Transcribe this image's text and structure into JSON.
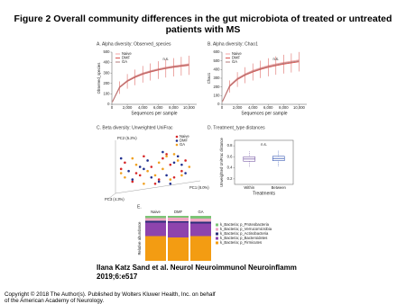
{
  "title": "Figure 2 Overall community differences in the gut microbiota of treated or untreated patients with MS",
  "chart_data": [
    {
      "type": "line",
      "title": "A. Alpha diversity: Observed_species",
      "x_label": "Sequences per sample",
      "y_label": "Observed_species",
      "annotation": "n.s.",
      "x": [
        100,
        1000,
        2000,
        3000,
        4000,
        5000,
        6000,
        7000,
        8000,
        9000,
        10000
      ],
      "xlim": [
        0,
        11000
      ],
      "xticks": [
        0,
        {
          "value": 2000,
          "label": "2,000"
        },
        {
          "value": 4000,
          "label": "4,000"
        },
        {
          "value": 6000,
          "label": "6,000"
        },
        {
          "value": 8000,
          "label": "8,000"
        },
        {
          "value": 10000,
          "label": "10,000"
        }
      ],
      "ylim": [
        0,
        500
      ],
      "yticks": [
        0,
        100,
        200,
        300,
        400,
        500
      ],
      "series": [
        {
          "name": "Naive",
          "color": "#f4a6a6",
          "values": [
            30,
            170,
            230,
            270,
            300,
            322,
            340,
            356,
            368,
            378,
            388
          ]
        },
        {
          "name": "DMF",
          "color": "#d9534f",
          "values": [
            28,
            160,
            220,
            258,
            288,
            310,
            328,
            343,
            355,
            365,
            374
          ],
          "errors": [
            10,
            60,
            70,
            75,
            80,
            82,
            85,
            86,
            88,
            90,
            92
          ]
        },
        {
          "name": "GA",
          "color": "#b07878",
          "values": [
            29,
            165,
            225,
            264,
            294,
            316,
            334,
            349,
            361,
            371,
            381
          ]
        }
      ]
    },
    {
      "type": "line",
      "title": "B. Alpha diversity: Chao1",
      "x_label": "Sequences per sample",
      "y_label": "Chao1",
      "annotation": "n.s.",
      "x": [
        100,
        1000,
        2000,
        3000,
        4000,
        5000,
        6000,
        7000,
        8000,
        9000,
        10000
      ],
      "xlim": [
        0,
        11000
      ],
      "xticks": [
        0,
        {
          "value": 2000,
          "label": "2,000"
        },
        {
          "value": 4000,
          "label": "4,000"
        },
        {
          "value": 6000,
          "label": "6,000"
        },
        {
          "value": 8000,
          "label": "8,000"
        },
        {
          "value": 10000,
          "label": "10,000"
        }
      ],
      "ylim": [
        0,
        600
      ],
      "yticks": [
        0,
        100,
        200,
        300,
        400,
        500,
        600
      ],
      "series": [
        {
          "name": "Naive",
          "color": "#f4a6a6",
          "values": [
            40,
            220,
            300,
            350,
            390,
            420,
            445,
            465,
            482,
            496,
            510
          ]
        },
        {
          "name": "DMF",
          "color": "#d9534f",
          "values": [
            38,
            205,
            285,
            335,
            372,
            402,
            426,
            446,
            462,
            476,
            490
          ],
          "errors": [
            12,
            70,
            85,
            92,
            98,
            100,
            104,
            106,
            108,
            110,
            112
          ]
        },
        {
          "name": "GA",
          "color": "#b07878",
          "values": [
            39,
            212,
            292,
            342,
            380,
            410,
            435,
            455,
            472,
            486,
            500
          ]
        }
      ]
    },
    {
      "type": "scatter",
      "title": "C. Beta diversity: Unweighted UniFrac",
      "x_label": "PC1 (8.0%)",
      "y_label": "PC2 (5.2%)",
      "z_label": "PC3 (4.3%)",
      "xlim": [
        -1,
        1
      ],
      "ylim": [
        -1,
        1
      ],
      "series": [
        {
          "name": "Naive",
          "color": "#d62728",
          "x": [
            -0.8,
            -0.5,
            -0.3,
            0.1,
            0.4,
            0.7,
            -0.6,
            0.2,
            0.5,
            -0.1,
            0.8,
            -0.9,
            0.0,
            0.3,
            -0.4
          ],
          "values": [
            0.2,
            -0.3,
            0.5,
            -0.6,
            0.1,
            -0.2,
            -0.7,
            0.4,
            -0.5,
            0.0,
            0.3,
            -0.1,
            -0.8,
            0.6,
            -0.4
          ]
        },
        {
          "name": "DMF",
          "color": "#1f2f8f",
          "x": [
            -0.7,
            -0.2,
            0.3,
            0.6,
            -0.4,
            0.1,
            0.8,
            -0.9,
            0.5,
            -0.1,
            0.2,
            -0.6,
            0.7,
            -0.3,
            0.4
          ],
          "values": [
            -0.2,
            0.3,
            -0.4,
            0.5,
            0.0,
            -0.7,
            -0.3,
            0.4,
            0.2,
            -0.5,
            0.7,
            -0.6,
            0.1,
            -0.1,
            -0.8
          ]
        },
        {
          "name": "GA",
          "color": "#f0a020",
          "x": [
            -0.5,
            0.0,
            0.6,
            -0.8,
            0.3,
            -0.2,
            0.9,
            0.4,
            -0.6,
            0.1,
            -0.3,
            0.7,
            -0.9,
            0.2,
            0.5
          ],
          "values": [
            0.1,
            -0.4,
            0.3,
            -0.5,
            0.5,
            -0.2,
            0.0,
            -0.6,
            0.4,
            0.2,
            -0.8,
            -0.4,
            -0.3,
            -0.1,
            0.6
          ]
        }
      ]
    },
    {
      "type": "box",
      "title": "D. Treatment_type distances",
      "x_label": "Treatments",
      "y_label": "Unweighted UniFrac distance",
      "annotation": "n.s.",
      "categories": [
        "Within",
        "Between"
      ],
      "colors": [
        "#7b5ea7",
        "#3b5bb5"
      ],
      "min": [
        0.42,
        0.43
      ],
      "q1": [
        0.52,
        0.53
      ],
      "median": [
        0.56,
        0.57
      ],
      "q3": [
        0.6,
        0.61
      ],
      "max": [
        0.7,
        0.71
      ],
      "ylim": [
        0.1,
        0.9
      ],
      "yticks": [
        0.2,
        0.4,
        0.6,
        0.8
      ]
    },
    {
      "type": "stacked_bar",
      "title": "E.",
      "y_label": "Relative abundance",
      "categories": [
        "Naive",
        "DMF",
        "GA"
      ],
      "ylim": [
        0,
        100
      ],
      "series": [
        {
          "name": "k_Bacteria; p_Proteobacteria",
          "color": "#7cc576",
          "values": [
            5,
            4,
            6
          ]
        },
        {
          "name": "k_Bacteria; p_Verrucomicrobia",
          "color": "#f2a7c4",
          "values": [
            6,
            8,
            7
          ]
        },
        {
          "name": "k_Bacteria; p_Actinobacteria",
          "color": "#2b2f7a",
          "values": [
            4,
            3,
            4
          ]
        },
        {
          "name": "k_Bacteria; p_Bacteroidetes",
          "color": "#8e44ad",
          "values": [
            30,
            33,
            28
          ]
        },
        {
          "name": "k_Bacteria; p_Firmicutes",
          "color": "#f39c12",
          "values": [
            55,
            52,
            55
          ]
        }
      ]
    }
  ],
  "citation": "Ilana Katz Sand et al. Neurol Neuroimmunol Neuroinflamm 2019;6:e517",
  "copyright": "Copyright © 2018 The Author(s). Published by Wolters Kluwer Health, Inc. on behalf of the American Academy of Neurology."
}
